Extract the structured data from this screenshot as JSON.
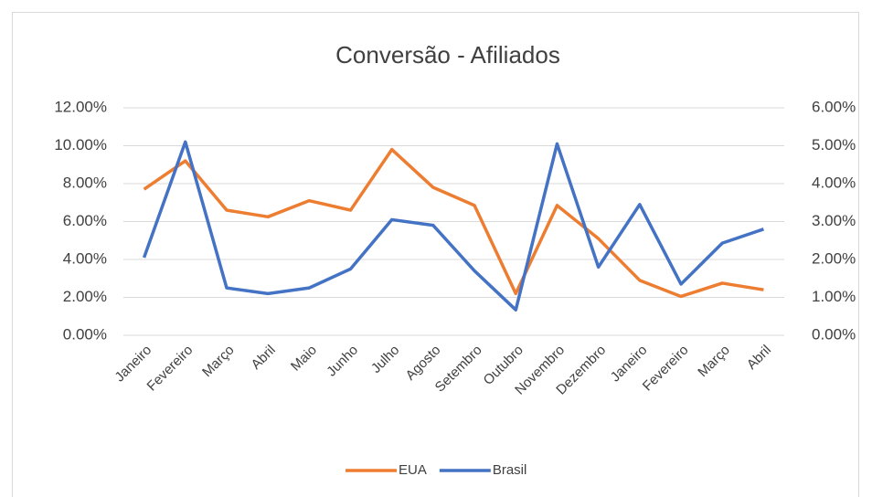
{
  "chart_data": {
    "type": "line",
    "title": "Conversão - Afiliados",
    "categories": [
      "Janeiro",
      "Fevereiro",
      "Março",
      "Abril",
      "Maio",
      "Junho",
      "Julho",
      "Agosto",
      "Setembro",
      "Outubro",
      "Novembro",
      "Dezembro",
      "Janeiro",
      "Fevereiro",
      "Março",
      "Abril"
    ],
    "series": [
      {
        "name": "EUA",
        "color": "#ed7d31",
        "values": [
          7.7,
          9.2,
          6.6,
          6.25,
          7.1,
          6.6,
          9.8,
          7.8,
          6.85,
          2.2,
          6.85,
          5.1,
          2.9,
          2.05,
          2.75,
          2.4
        ]
      },
      {
        "name": "Brasil",
        "color": "#4472c4",
        "axis": "y2",
        "values": [
          2.05,
          5.1,
          1.25,
          1.1,
          1.25,
          1.75,
          3.05,
          2.9,
          1.7,
          0.67,
          5.05,
          1.8,
          3.45,
          1.35,
          2.43,
          2.8
        ]
      }
    ],
    "ylim": [
      0,
      12
    ],
    "yticks": [
      {
        "value": 0,
        "label": "0.00%"
      },
      {
        "value": 2,
        "label": "2.00%"
      },
      {
        "value": 4,
        "label": "4.00%"
      },
      {
        "value": 6,
        "label": "6.00%"
      },
      {
        "value": 8,
        "label": "8.00%"
      },
      {
        "value": 10,
        "label": "10.00%"
      },
      {
        "value": 12,
        "label": "12.00%"
      }
    ],
    "y2lim": [
      0,
      6
    ],
    "y2ticks": [
      {
        "value": 0,
        "label": "0.00%"
      },
      {
        "value": 1,
        "label": "1.00%"
      },
      {
        "value": 2,
        "label": "2.00%"
      },
      {
        "value": 3,
        "label": "3.00%"
      },
      {
        "value": 4,
        "label": "4.00%"
      },
      {
        "value": 5,
        "label": "5.00%"
      },
      {
        "value": 6,
        "label": "6.00%"
      }
    ],
    "grid": true,
    "legend": "bottom"
  }
}
